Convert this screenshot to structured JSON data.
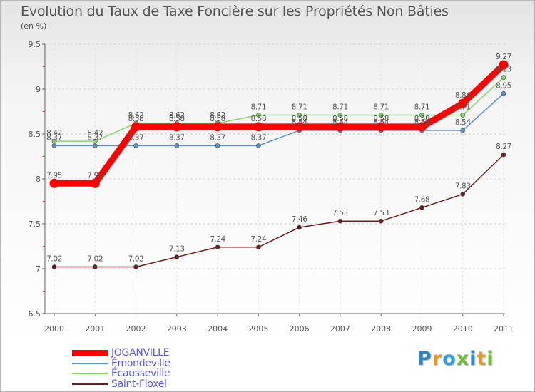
{
  "title": "Evolution du Taux de Taxe Foncière sur les Propriétés Non Bâties",
  "subtitle": "(en %)",
  "logo": {
    "text": "Proxiti",
    "letters": [
      {
        "char": "P",
        "color": "#2b86c8"
      },
      {
        "char": "r",
        "color": "#e0982e"
      },
      {
        "char": "o",
        "color": "#2f9fd8"
      },
      {
        "char": "x",
        "color": "#73ba3c"
      },
      {
        "char": "i",
        "color": "#2b86c8"
      },
      {
        "char": "t",
        "color": "#e0982e"
      },
      {
        "char": "i",
        "color": "#73ba3c"
      }
    ]
  },
  "chart_data": {
    "type": "line",
    "title": "Evolution du Taux de Taxe Foncière sur les Propriétés Non Bâties",
    "ylabel": "(en %)",
    "xlabel": "",
    "x": [
      "2000",
      "2001",
      "2002",
      "2003",
      "2004",
      "2005",
      "2006",
      "2007",
      "2008",
      "2009",
      "2010",
      "2011"
    ],
    "ylim": [
      6.5,
      9.5
    ],
    "yticks": [
      "6.5",
      "7",
      "7.5",
      "8",
      "8.5",
      "9",
      "9.5"
    ],
    "grid": "horizontal dashed",
    "legend_position": "bottom-left",
    "series": [
      {
        "name": "Saint-Floxel",
        "color": "#6b1e1e",
        "role": "thin",
        "values": [
          7.02,
          7.02,
          7.02,
          7.13,
          7.24,
          7.24,
          7.46,
          7.53,
          7.53,
          7.68,
          7.83,
          8.27
        ],
        "labels": [
          "7.02",
          "7.02",
          "7.02",
          "7.13",
          "7.24",
          "7.24",
          "7.46",
          "7.53",
          "7.53",
          "7.68",
          "7.83",
          "8.27"
        ]
      },
      {
        "name": "Émondeville",
        "color": "#5b93c8",
        "role": "thin",
        "values": [
          8.37,
          8.37,
          8.37,
          8.37,
          8.37,
          8.37,
          8.54,
          8.54,
          8.54,
          8.54,
          8.54,
          8.95
        ],
        "labels": [
          "8.37",
          "8.37",
          "8.37",
          "8.37",
          "8.37",
          "8.37",
          "8.54",
          "8.54",
          "8.54",
          "8.54",
          "8.54",
          "8.95"
        ]
      },
      {
        "name": "Écausseville",
        "color": "#86d46a",
        "role": "thin",
        "values": [
          8.42,
          8.42,
          8.62,
          8.62,
          8.62,
          8.71,
          8.71,
          8.71,
          8.71,
          8.71,
          8.71,
          9.13
        ],
        "labels": [
          "8.42",
          "8.42",
          "8.62",
          "8.62",
          "8.62",
          "8.71",
          "8.71",
          "8.71",
          "8.71",
          "8.71",
          "8.71",
          "9.13"
        ]
      },
      {
        "name": "JOGANVILLE",
        "color": "#ff0000",
        "role": "thick",
        "values": [
          7.95,
          7.95,
          8.58,
          8.58,
          8.58,
          8.58,
          8.58,
          8.58,
          8.58,
          8.58,
          8.84,
          9.27
        ],
        "labels": [
          "7.95",
          "7.95",
          "8.58",
          "8.58",
          "8.58",
          "8.58",
          "8.58",
          "8.58",
          "8.58",
          "8.58",
          "8.84",
          "9.27"
        ]
      }
    ],
    "legend_order": [
      "JOGANVILLE",
      "Émondeville",
      "Écausseville",
      "Saint-Floxel"
    ]
  }
}
